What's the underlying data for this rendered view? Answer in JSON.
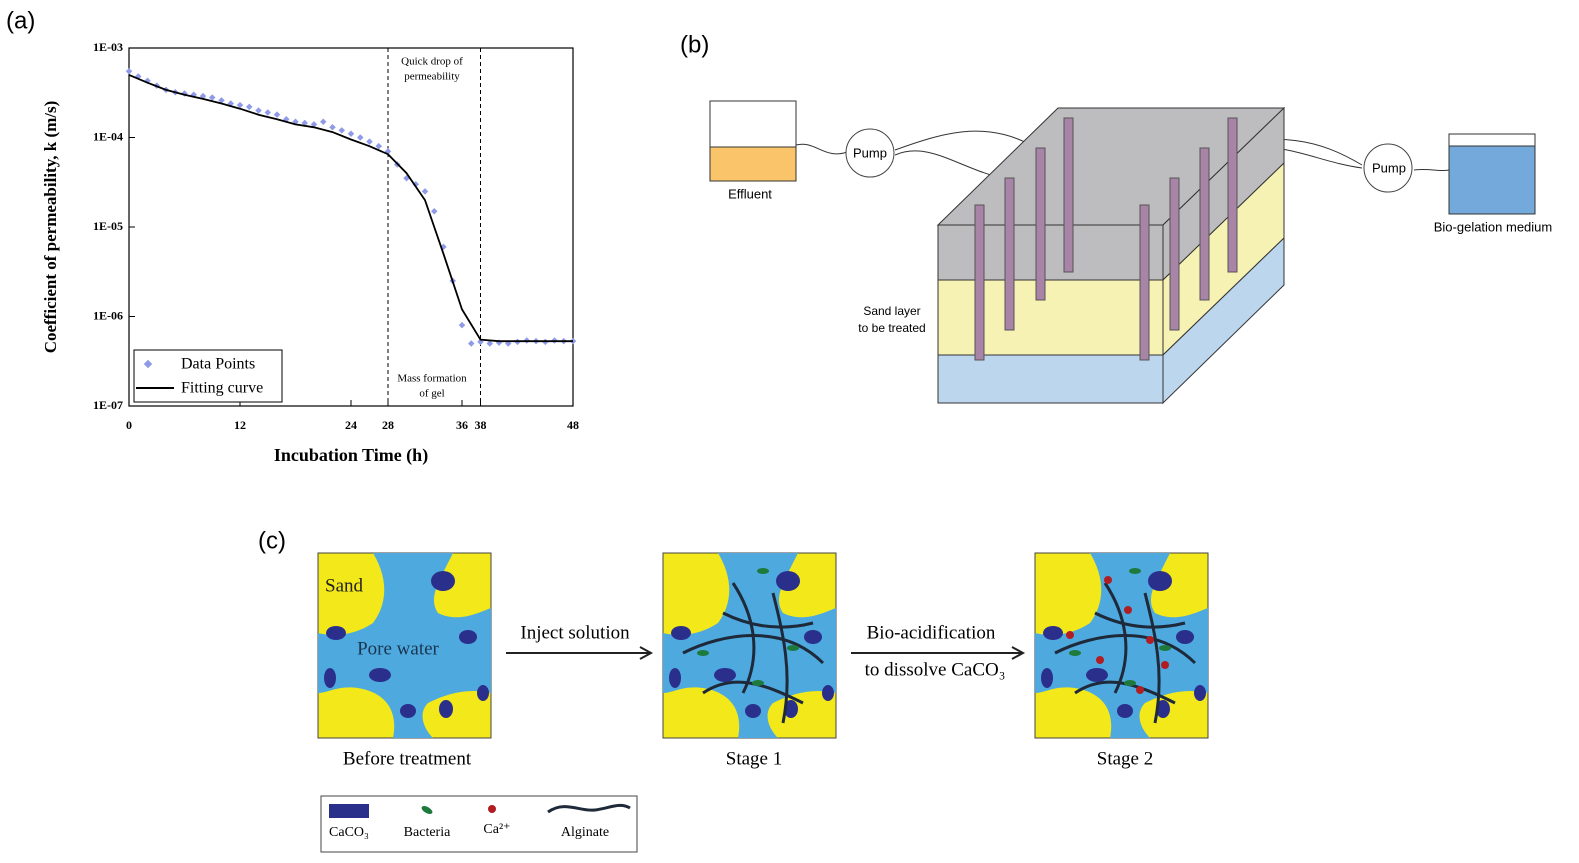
{
  "panel_a_label": "(a)",
  "chart_data": {
    "type": "scatter",
    "xlabel": "Incubation Time (h)",
    "ylabel": "Coefficient of permeability, k (m/s)",
    "xlim": [
      0,
      48
    ],
    "ylim": [
      1e-07,
      0.001
    ],
    "log_y": true,
    "xticks": [
      0,
      12,
      24,
      28,
      36,
      38,
      48
    ],
    "yticks": [
      {
        "value": 1e-07,
        "label": "1E-07"
      },
      {
        "value": 1e-06,
        "label": "1E-06"
      },
      {
        "value": 1e-05,
        "label": "1E-05"
      },
      {
        "value": 0.0001,
        "label": "1E-04"
      },
      {
        "value": 0.001,
        "label": "1E-03"
      }
    ],
    "vlines": [
      28,
      38
    ],
    "annotations": [
      [
        "Quick drop of",
        "permeability"
      ],
      [
        "Mass formation",
        "of gel"
      ]
    ],
    "legend": "lower left",
    "series": [
      {
        "name": "Data Points",
        "type": "scatter",
        "color": "#8f9be8",
        "x": [
          0,
          1,
          2,
          3,
          4,
          5,
          6,
          7,
          8,
          9,
          10,
          11,
          12,
          13,
          14,
          15,
          16,
          17,
          18,
          19,
          20,
          21,
          22,
          23,
          24,
          25,
          26,
          27,
          28,
          29,
          30,
          31,
          32,
          33,
          34,
          35,
          36,
          37,
          38,
          39,
          40,
          41,
          42,
          43,
          44,
          45,
          46,
          47,
          48
        ],
        "values": [
          0.00055,
          0.00048,
          0.00043,
          0.00038,
          0.00034,
          0.00032,
          0.00031,
          0.0003,
          0.00029,
          0.00028,
          0.00026,
          0.00024,
          0.00023,
          0.00022,
          0.0002,
          0.00019,
          0.00018,
          0.00016,
          0.00015,
          0.000145,
          0.00014,
          0.00015,
          0.00013,
          0.00012,
          0.00011,
          0.0001,
          9e-05,
          8e-05,
          7e-05,
          5e-05,
          3.5e-05,
          3e-05,
          2.5e-05,
          1.5e-05,
          6e-06,
          2.5e-06,
          8e-07,
          5e-07,
          5.2e-07,
          5e-07,
          5.1e-07,
          5e-07,
          5.2e-07,
          5.4e-07,
          5.3e-07,
          5.2e-07,
          5.4e-07,
          5.3e-07,
          5.3e-07
        ]
      },
      {
        "name": "Fitting curve",
        "type": "line",
        "color": "#000000",
        "x": [
          0,
          2,
          4,
          6,
          8,
          10,
          12,
          14,
          16,
          18,
          20,
          22,
          24,
          26,
          28,
          30,
          32,
          34,
          36,
          38,
          40,
          42,
          44,
          46,
          48
        ],
        "values": [
          0.0005,
          0.00041,
          0.00034,
          0.0003,
          0.00027,
          0.00024,
          0.00021,
          0.00018,
          0.00016,
          0.00014,
          0.00013,
          0.000115,
          9.5e-05,
          8e-05,
          6.5e-05,
          4e-05,
          2e-05,
          5e-06,
          1.2e-06,
          5.5e-07,
          5.3e-07,
          5.3e-07,
          5.3e-07,
          5.3e-07,
          5.3e-07
        ]
      }
    ]
  },
  "panel_b": {
    "label": "(b)",
    "effluent": "Effluent",
    "pumps": [
      "Pump",
      "Pump"
    ],
    "medium": "Bio-gelation medium",
    "sand_layer": [
      "Sand layer",
      "to be treated"
    ]
  },
  "panel_c": {
    "label": "(c)",
    "sand": "Sand",
    "pore_water": "Pore water",
    "step1": "Inject solution",
    "step2": [
      "Bio-acidification",
      "to dissolve CaCO₃"
    ],
    "stages": [
      "Before treatment",
      "Stage 1",
      "Stage 2"
    ],
    "legend": [
      "CaCO₃",
      "Bacteria",
      "Ca²⁺",
      "Alginate"
    ]
  }
}
